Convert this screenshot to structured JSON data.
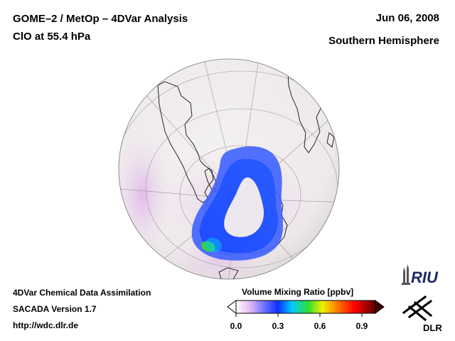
{
  "header": {
    "title_line1": "GOME–2 / MetOp – 4DVar Analysis",
    "title_line2": "ClO at 55.4 hPa",
    "date": "Jun 06, 2008",
    "region": "Southern Hemisphere"
  },
  "footer": {
    "line1": "4DVar Chemical Data Assimilation",
    "line2": "SACADA Version 1.7",
    "line3": "http://wdc.dlr.de"
  },
  "colorbar": {
    "title": "Volume Mixing Ratio [ppbv]",
    "ticks": [
      "0.0",
      "0.3",
      "0.6",
      "0.9"
    ],
    "range": [
      0.0,
      1.0
    ],
    "colors": [
      "#ffffff",
      "#e9c3f0",
      "#7c7cff",
      "#1030ff",
      "#00c8ff",
      "#30e030",
      "#f0f000",
      "#ff8000",
      "#ff0000",
      "#600000"
    ]
  },
  "logos": {
    "riu": "RIU",
    "dlr": "DLR"
  },
  "map": {
    "projection": "orthographic",
    "hemisphere": "Southern Hemisphere",
    "background_color": "#f1eeee"
  }
}
